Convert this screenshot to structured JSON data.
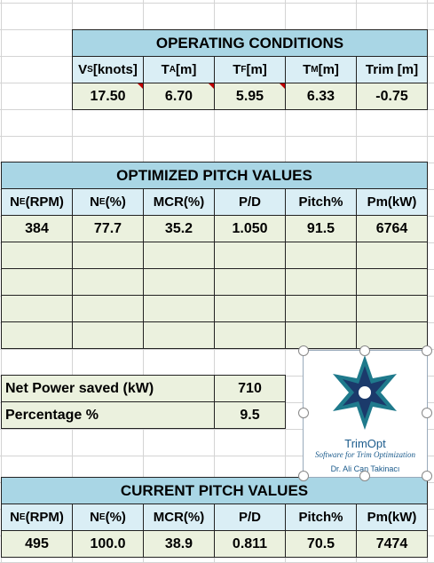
{
  "operating_conditions": {
    "title": "OPERATING CONDITIONS",
    "headers": [
      {
        "main": "V",
        "sub": "S",
        "rest": " [knots]"
      },
      {
        "main": "T",
        "sub": "A",
        "rest": " [m]"
      },
      {
        "main": "T",
        "sub": "F",
        "rest": " [m]"
      },
      {
        "main": "T",
        "sub": "M",
        "rest": " [m]"
      },
      {
        "main": "Trim [m]"
      }
    ],
    "values": [
      "17.50",
      "6.70",
      "5.95",
      "6.33",
      "-0.75"
    ]
  },
  "optimized": {
    "title": "OPTIMIZED PITCH VALUES",
    "headers": [
      {
        "main": "N",
        "sub": "E",
        "rest": "(RPM)"
      },
      {
        "main": "N",
        "sub": "E",
        "rest": "(%)"
      },
      {
        "main": "MCR(%)"
      },
      {
        "main": "P/D"
      },
      {
        "main": "Pitch%"
      },
      {
        "main": "Pm(kW)"
      }
    ],
    "values": [
      "384",
      "77.7",
      "35.2",
      "1.050",
      "91.5",
      "6764"
    ]
  },
  "summary": {
    "rows": [
      {
        "label": "Net Power saved (kW)",
        "value": "710"
      },
      {
        "label": "Percentage %",
        "value": "9.5"
      }
    ]
  },
  "current": {
    "title": "CURRENT PITCH VALUES",
    "headers": [
      {
        "main": "N",
        "sub": "E",
        "rest": "(RPM)"
      },
      {
        "main": "N",
        "sub": "E",
        "rest": "(%)"
      },
      {
        "main": "MCR(%)"
      },
      {
        "main": "P/D"
      },
      {
        "main": "Pitch%"
      },
      {
        "main": "Pm(kW)"
      }
    ],
    "values": [
      "495",
      "100.0",
      "38.9",
      "0.811",
      "70.5",
      "7474"
    ]
  },
  "logo": {
    "name": "TrimOpt",
    "tagline": "Software for Trim Optimization",
    "author": "Dr. Ali Can Takinacı"
  }
}
